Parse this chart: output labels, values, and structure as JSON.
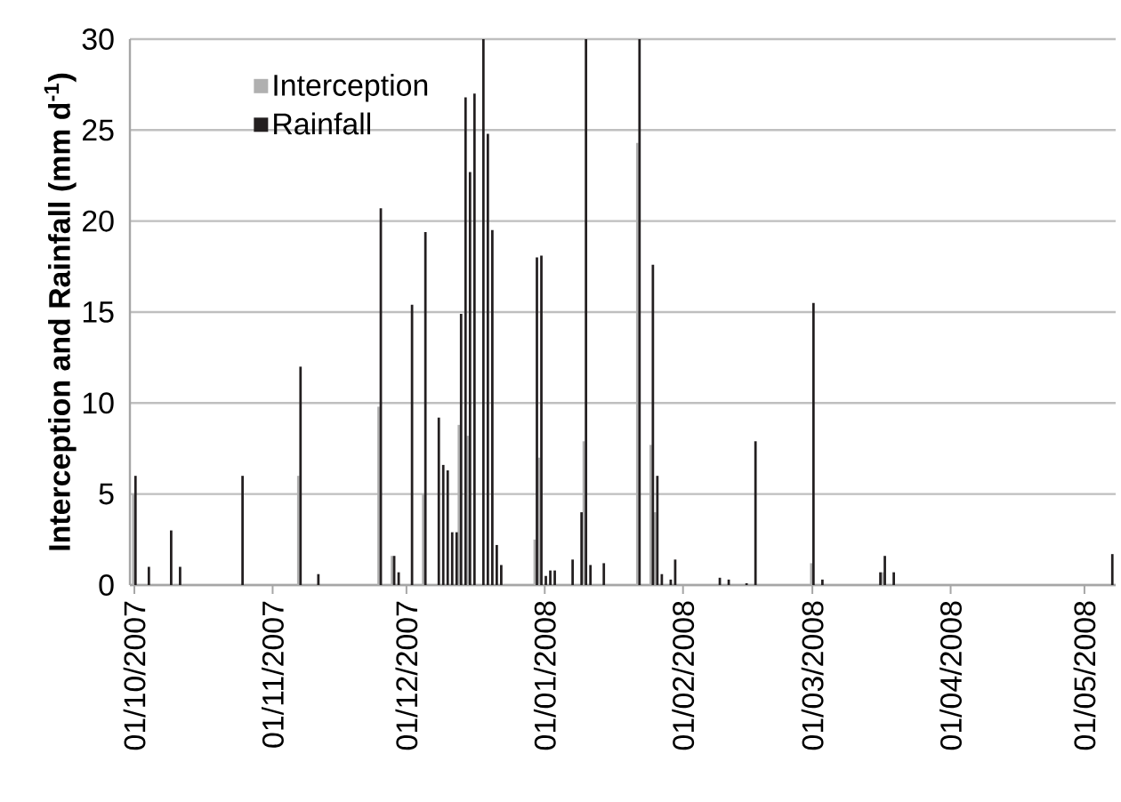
{
  "chart_data": {
    "type": "bar",
    "ylabel": "Interception and Rainfall (mm d$^{-1}$)",
    "xlim": [
      "2007-09-30",
      "2008-05-08"
    ],
    "xticks": [
      {
        "value": "2007-10-01",
        "label": "01/10/2007"
      },
      {
        "value": "2007-11-01",
        "label": "01/11/2007"
      },
      {
        "value": "2007-12-01",
        "label": "01/12/2007"
      },
      {
        "value": "2008-01-01",
        "label": "01/01/2008"
      },
      {
        "value": "2008-02-01",
        "label": "01/02/2008"
      },
      {
        "value": "2008-03-01",
        "label": "01/03/2008"
      },
      {
        "value": "2008-04-01",
        "label": "01/04/2008"
      },
      {
        "value": "2008-05-01",
        "label": "01/05/2008"
      }
    ],
    "ylim": [
      0,
      30
    ],
    "yticks": [
      0,
      5,
      10,
      15,
      20,
      25,
      30
    ],
    "grid": "y",
    "legend": "top left",
    "series": [
      {
        "name": "Interception",
        "color": "#b0b0b0",
        "x": [
          "2007-10-01",
          "2007-11-07",
          "2007-11-25",
          "2007-11-28",
          "2007-12-05",
          "2007-12-13",
          "2007-12-15",
          "2007-12-30",
          "2007-12-31",
          "2008-01-10",
          "2008-01-22",
          "2008-01-25",
          "2008-01-26",
          "2008-03-01",
          "2008-03-17"
        ],
        "values": [
          5.0,
          6.0,
          9.8,
          1.6,
          5.0,
          8.8,
          8.2,
          2.5,
          7.0,
          7.9,
          24.3,
          7.7,
          4.0,
          1.2,
          0.7
        ]
      },
      {
        "name": "Rainfall",
        "color": "#231f20",
        "x": [
          "2007-10-01",
          "2007-10-04",
          "2007-10-09",
          "2007-10-11",
          "2007-10-25",
          "2007-11-07",
          "2007-11-11",
          "2007-11-25",
          "2007-11-28",
          "2007-11-29",
          "2007-12-02",
          "2007-12-05",
          "2007-12-08",
          "2007-12-09",
          "2007-12-10",
          "2007-12-11",
          "2007-12-12",
          "2007-12-13",
          "2007-12-14",
          "2007-12-15",
          "2007-12-16",
          "2007-12-18",
          "2007-12-19",
          "2007-12-20",
          "2007-12-21",
          "2007-12-22",
          "2007-12-30",
          "2007-12-31",
          "2008-01-01",
          "2008-01-02",
          "2008-01-03",
          "2008-01-07",
          "2008-01-09",
          "2008-01-10",
          "2008-01-11",
          "2008-01-14",
          "2008-01-22",
          "2008-01-25",
          "2008-01-26",
          "2008-01-27",
          "2008-01-29",
          "2008-01-30",
          "2008-02-09",
          "2008-02-11",
          "2008-02-15",
          "2008-02-17",
          "2008-03-01",
          "2008-03-03",
          "2008-03-16",
          "2008-03-17",
          "2008-03-19",
          "2008-05-07"
        ],
        "values": [
          6.0,
          1.0,
          3.0,
          1.0,
          6.0,
          12.0,
          0.6,
          20.7,
          1.6,
          0.7,
          15.4,
          19.4,
          9.2,
          6.6,
          6.3,
          2.9,
          2.9,
          14.9,
          26.8,
          22.7,
          27.0,
          30,
          24.8,
          19.5,
          2.2,
          1.1,
          18.0,
          18.1,
          0.5,
          0.8,
          0.8,
          1.4,
          4.0,
          30,
          1.1,
          1.2,
          30,
          17.6,
          6.0,
          0.6,
          0.3,
          1.4,
          0.4,
          0.3,
          0.1,
          7.9,
          15.5,
          0.3,
          0.7,
          1.6,
          0.7,
          1.7
        ]
      }
    ]
  }
}
